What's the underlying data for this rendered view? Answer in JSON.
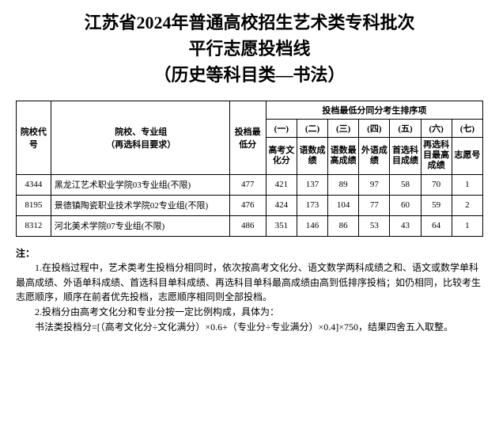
{
  "title": {
    "line1": "江苏省2024年普通高校招生艺术类专科批次",
    "line2": "平行志愿投档线",
    "line3": "（历史等科目类—书法）"
  },
  "table": {
    "headers": {
      "code": "院校代号",
      "school": "院校、专业组\n（再选科目要求）",
      "min_score": "投档最低分",
      "rank_group": "投档最低分同分考生排序项",
      "col_nums": [
        "(一)",
        "(二)",
        "(三)",
        "(四)",
        "(五)",
        "(六)",
        "(七)"
      ],
      "col_labels": [
        "高考文化分",
        "语数成绩",
        "语数最高成绩",
        "外语成绩",
        "首选科目成绩",
        "再选科目最高成绩",
        "志愿号"
      ]
    },
    "rows": [
      {
        "code": "4344",
        "school": "黑龙江艺术职业学院03专业组(不限)",
        "min": "477",
        "ranks": [
          "421",
          "137",
          "89",
          "97",
          "58",
          "70",
          "1"
        ]
      },
      {
        "code": "8195",
        "school": "景德镇陶瓷职业技术学院02专业组(不限)",
        "min": "476",
        "ranks": [
          "424",
          "173",
          "104",
          "77",
          "60",
          "59",
          "2"
        ]
      },
      {
        "code": "8312",
        "school": "河北美术学院07专业组(不限)",
        "min": "486",
        "ranks": [
          "351",
          "146",
          "86",
          "53",
          "43",
          "64",
          "1"
        ]
      }
    ]
  },
  "notes": {
    "title": "注：",
    "p1": "1.在投档过程中，艺术类考生投档分相同时，依次按高考文化分、语文数学两科成绩之和、语文或数学单科最高成绩、外语单科成绩、首选科目单科成绩、再选科目单科最高成绩由高到低排序投档；如仍相同，比较考生志愿顺序，顺序在前者优先投档，志愿顺序相同则全部投档。",
    "p2": "2.投档分由高考文化分和专业分按一定比例构成，具体为：",
    "p3": "书法类投档分=[（高考文化分÷文化满分）×0.6+（专业分÷专业满分）×0.4]×750，结果四舍五入取整。"
  },
  "styling": {
    "background_color": "#ffffff",
    "text_color": "#000000",
    "border_color": "#000000",
    "title_fontsize": 22,
    "table_fontsize": 11,
    "notes_fontsize": 12,
    "font_family": "SimSun"
  }
}
